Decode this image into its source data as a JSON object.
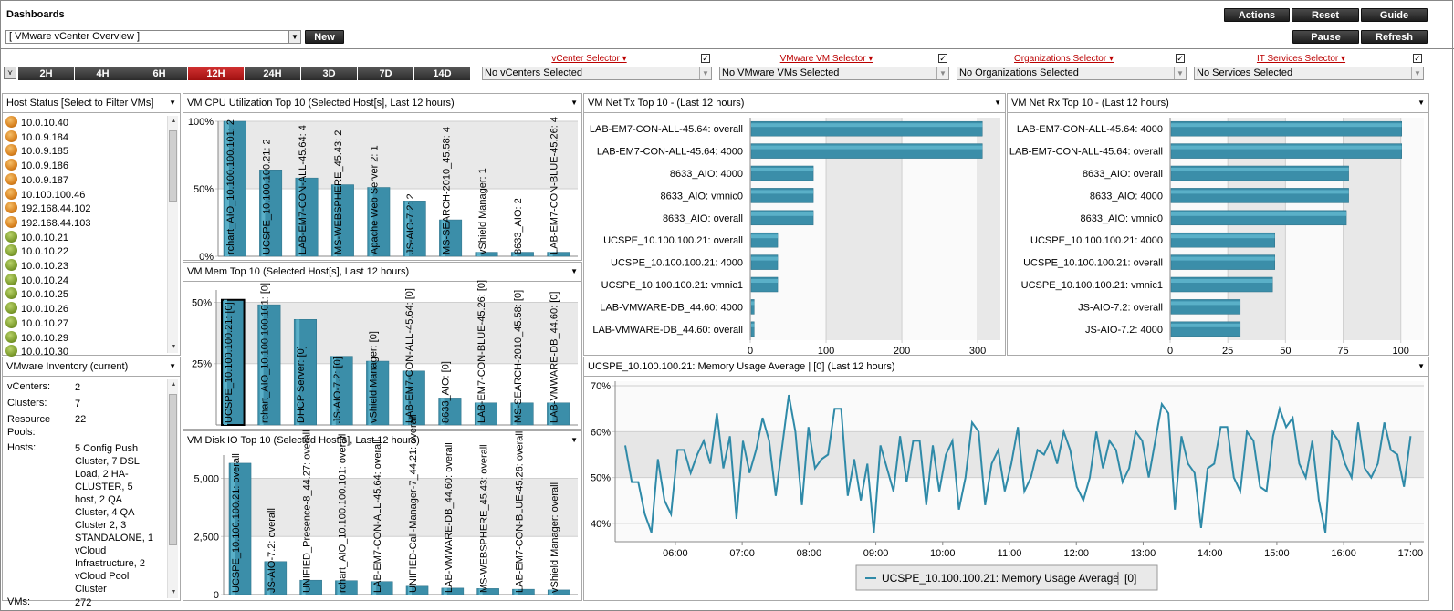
{
  "app_title": "Dashboards",
  "dashboard_select": "[ VMware vCenter Overview ]",
  "new_label": "New",
  "buttons": {
    "actions": "Actions",
    "reset": "Reset",
    "guide": "Guide",
    "pause": "Pause",
    "refresh": "Refresh"
  },
  "time_buttons": [
    "2H",
    "4H",
    "6H",
    "12H",
    "24H",
    "3D",
    "7D",
    "14D"
  ],
  "active_time": "12H",
  "selectors": [
    {
      "label": "vCenter Selector",
      "value": "No vCenters Selected"
    },
    {
      "label": "VMware VM Selector",
      "value": "No VMware VMs Selected"
    },
    {
      "label": "Organizations Selector",
      "value": "No Organizations Selected"
    },
    {
      "label": "IT Services Selector",
      "value": "No Services Selected"
    }
  ],
  "host_status": {
    "title": "Host Status [Select to Filter VMs]",
    "hosts": [
      {
        "name": "10.0.10.40",
        "status": "orange"
      },
      {
        "name": "10.0.9.184",
        "status": "orange"
      },
      {
        "name": "10.0.9.185",
        "status": "orange"
      },
      {
        "name": "10.0.9.186",
        "status": "orange"
      },
      {
        "name": "10.0.9.187",
        "status": "orange"
      },
      {
        "name": "10.100.100.46",
        "status": "orange"
      },
      {
        "name": "192.168.44.102",
        "status": "orange"
      },
      {
        "name": "192.168.44.103",
        "status": "orange"
      },
      {
        "name": "10.0.10.21",
        "status": "green"
      },
      {
        "name": "10.0.10.22",
        "status": "green"
      },
      {
        "name": "10.0.10.23",
        "status": "green"
      },
      {
        "name": "10.0.10.24",
        "status": "green"
      },
      {
        "name": "10.0.10.25",
        "status": "green"
      },
      {
        "name": "10.0.10.26",
        "status": "green"
      },
      {
        "name": "10.0.10.27",
        "status": "green"
      },
      {
        "name": "10.0.10.29",
        "status": "green"
      },
      {
        "name": "10.0.10.30",
        "status": "green"
      }
    ]
  },
  "inventory": {
    "title": "VMware Inventory (current)",
    "rows": [
      {
        "key": "vCenters:",
        "value": "2"
      },
      {
        "key": "Clusters:",
        "value": "7"
      },
      {
        "key": "Resource Pools:",
        "value": "22"
      },
      {
        "key": "Hosts:",
        "value": "5 Config Push Cluster, 7 DSL Load, 2 HA-CLUSTER, 5 host, 2 QA Cluster, 4 QA Cluster 2, 3 STANDALONE, 1 vCloud Infrastructure, 2 vCloud Pool Cluster"
      },
      {
        "key": "VMs:",
        "value": "272"
      }
    ]
  },
  "chart_data": [
    {
      "type": "bar",
      "title": "VM CPU Utilization Top 10 (Selected Host[s], Last 12 hours)",
      "ylim": [
        0,
        100
      ],
      "yticks": [
        "0%",
        "50%",
        "100%"
      ],
      "categories": [
        "rchart_AIO_10.100.100.101: 2",
        "UCSPE_10.100.100.21: 2",
        "LAB-EM7-CON-ALL-45.64: 4",
        "MS-WEBSPHERE_45.43: 2",
        "Apache Web Server 2: 1",
        "JS-AIO-7.2: 2",
        "MS-SEARCH-2010_45.58: 4",
        "vShield Manager: 1",
        "8633_AIO: 2",
        "LAB-EM7-CON-BLUE-45.26: 4"
      ],
      "values": [
        100,
        64,
        58,
        53,
        51,
        41,
        27,
        3,
        3,
        3
      ]
    },
    {
      "type": "bar",
      "title": "VM Mem Top 10 (Selected Host[s], Last 12 hours)",
      "ylim": [
        0,
        55
      ],
      "yticks": [
        "25%",
        "50%"
      ],
      "categories": [
        "UCSPE_10.100.100.21: [0]",
        "rchart_AIO_10.100.100.101: [0]",
        "DHCP Server: [0]",
        "JS-AIO-7.2: [0]",
        "vShield Manager: [0]",
        "LAB-EM7-CON-ALL-45.64: [0]",
        "8633_AIO: [0]",
        "LAB-EM7-CON-BLUE-45.26: [0]",
        "MS-SEARCH-2010_45.58: [0]",
        "LAB-VMWARE-DB_44.60: [0]"
      ],
      "values": [
        51,
        49,
        43,
        28,
        26,
        22,
        11,
        9,
        9,
        9
      ],
      "selected_index": 0
    },
    {
      "type": "bar",
      "title": "VM Disk IO Top 10 (Selected Host[s], Last 12 hours)",
      "ylim": [
        0,
        6000
      ],
      "yticks": [
        "0",
        "2,500",
        "5,000"
      ],
      "categories": [
        "UCSPE_10.100.100.21: overall",
        "JS-AIO-7.2: overall",
        "UNIFIED_Presence-8_44.27: overall",
        "rchart_AIO_10.100.100.101: overall",
        "LAB-EM7-CON-ALL-45.64: overall",
        "UNIFIED-Call-Manager-7_44.21: overall",
        "LAB-VMWARE-DB_44.60: overall",
        "MS-WEBSPHERE_45.43: overall",
        "LAB-EM7-CON-BLUE-45.26: overall",
        "vShield Manager: overall"
      ],
      "values": [
        5650,
        1420,
        620,
        600,
        560,
        360,
        280,
        260,
        230,
        200
      ]
    },
    {
      "type": "bar",
      "orientation": "horizontal",
      "title": "VM Net Tx Top 10 - (Last 12 hours)",
      "xlim": [
        0,
        330
      ],
      "xticks": [
        "0",
        "100",
        "200",
        "300"
      ],
      "categories": [
        "LAB-EM7-CON-ALL-45.64: overall",
        "LAB-EM7-CON-ALL-45.64: 4000",
        "8633_AIO: 4000",
        "8633_AIO: vmnic0",
        "8633_AIO: overall",
        "UCSPE_10.100.100.21: overall",
        "UCSPE_10.100.100.21: 4000",
        "UCSPE_10.100.100.21: vmnic1",
        "LAB-VMWARE-DB_44.60: 4000",
        "LAB-VMWARE-DB_44.60: overall"
      ],
      "values": [
        305,
        305,
        82,
        82,
        82,
        35,
        35,
        35,
        4,
        4
      ]
    },
    {
      "type": "bar",
      "orientation": "horizontal",
      "title": "VM Net Rx Top 10 - (Last 12 hours)",
      "xlim": [
        0,
        110
      ],
      "xticks": [
        "0",
        "25",
        "50",
        "75",
        "100"
      ],
      "categories": [
        "LAB-EM7-CON-ALL-45.64: 4000",
        "LAB-EM7-CON-ALL-45.64: overall",
        "8633_AIO: overall",
        "8633_AIO: 4000",
        "8633_AIO: vmnic0",
        "UCSPE_10.100.100.21: 4000",
        "UCSPE_10.100.100.21: overall",
        "UCSPE_10.100.100.21: vmnic1",
        "JS-AIO-7.2: overall",
        "JS-AIO-7.2: 4000"
      ],
      "values": [
        100,
        100,
        77,
        77,
        76,
        45,
        45,
        44,
        30,
        30
      ]
    },
    {
      "type": "line",
      "title": "UCSPE_10.100.100.21: Memory Usage Average | [0] (Last 12 hours)",
      "ylim": [
        36,
        71
      ],
      "yticks": [
        "40%",
        "50%",
        "60%",
        "70%"
      ],
      "xlim": [
        5.1,
        17.2
      ],
      "xticks": [
        "06:00",
        "07:00",
        "08:00",
        "09:00",
        "10:00",
        "11:00",
        "12:00",
        "13:00",
        "14:00",
        "15:00",
        "16:00",
        "17:00"
      ],
      "series": [
        {
          "name": "UCSPE_10.100.100.21: Memory Usage Average | [0]",
          "values": [
            57,
            49,
            49,
            42,
            38,
            54,
            45,
            42,
            56,
            56,
            51,
            55,
            58,
            53,
            64,
            52,
            59,
            41,
            58,
            51,
            56,
            63,
            58,
            46,
            57,
            68,
            60,
            44,
            61,
            52,
            54,
            55,
            65,
            65,
            46,
            54,
            45,
            53,
            38,
            57,
            52,
            47,
            59,
            49,
            58,
            58,
            44,
            57,
            47,
            55,
            58,
            43,
            50,
            62,
            60,
            44,
            53,
            56,
            47,
            53,
            61,
            47,
            50,
            56,
            55,
            58,
            53,
            60,
            56,
            48,
            45,
            50,
            60,
            52,
            58,
            56,
            49,
            52,
            60,
            58,
            50,
            58,
            66,
            64,
            43,
            59,
            53,
            51,
            39,
            52,
            53,
            61,
            61,
            50,
            47,
            60,
            58,
            48,
            47,
            59,
            65,
            61,
            63,
            53,
            50,
            58,
            45,
            38,
            60,
            58,
            53,
            50,
            62,
            52,
            50,
            53,
            62,
            56,
            55,
            48,
            59
          ]
        }
      ],
      "legend": "UCSPE_10.100.100.21: Memory Usage Average",
      "legend_suffix": "[0]"
    }
  ]
}
